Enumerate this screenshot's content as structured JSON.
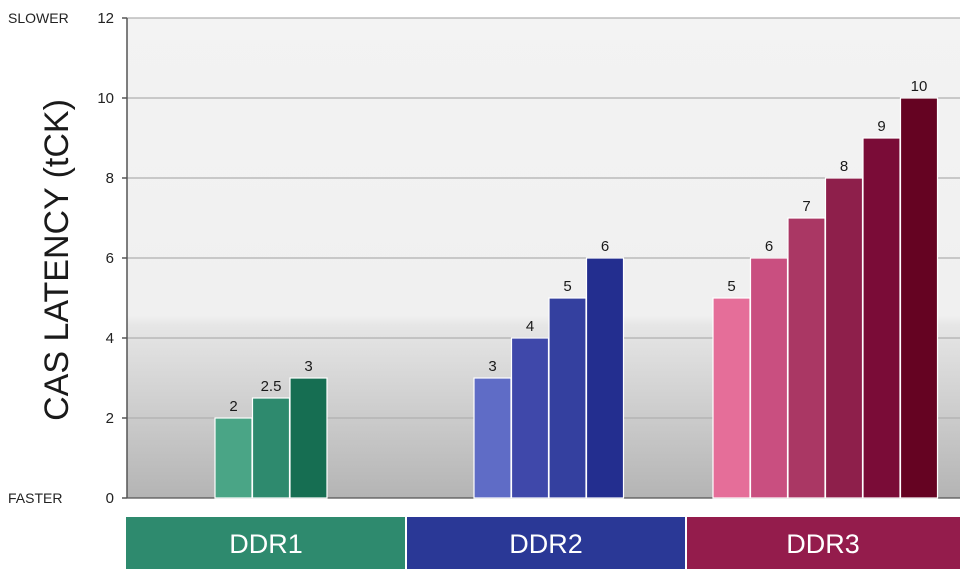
{
  "chart_data": {
    "type": "bar",
    "ylabel": "CAS LATENCY (tCK)",
    "ylim": [
      0,
      12
    ],
    "yticks": [
      0,
      2,
      4,
      6,
      8,
      10,
      12
    ],
    "ytick_labels": [
      "0",
      "2",
      "4",
      "6",
      "8",
      "10",
      "12"
    ],
    "y_top_annotation": "SLOWER",
    "y_bottom_annotation": "FASTER",
    "grid": true,
    "groups": [
      {
        "name": "DDR1",
        "color": "#2e8a6e",
        "values": [
          2,
          2.5,
          3
        ],
        "labels": [
          "2",
          "2.5",
          "3"
        ],
        "colors": [
          "#4aa586",
          "#2e8a6e",
          "#166e52"
        ]
      },
      {
        "name": "DDR2",
        "color": "#2a3896",
        "values": [
          3,
          4,
          5,
          6
        ],
        "labels": [
          "3",
          "4",
          "5",
          "6"
        ],
        "colors": [
          "#5f6cc6",
          "#3f48aa",
          "#34409f",
          "#232e8f"
        ]
      },
      {
        "name": "DDR3",
        "color": "#941c4c",
        "values": [
          5,
          6,
          7,
          8,
          9,
          10
        ],
        "labels": [
          "5",
          "6",
          "7",
          "8",
          "9",
          "10"
        ],
        "colors": [
          "#e56e99",
          "#c94f80",
          "#aa3764",
          "#8e1f4b",
          "#7a0c37",
          "#650322"
        ]
      }
    ]
  }
}
